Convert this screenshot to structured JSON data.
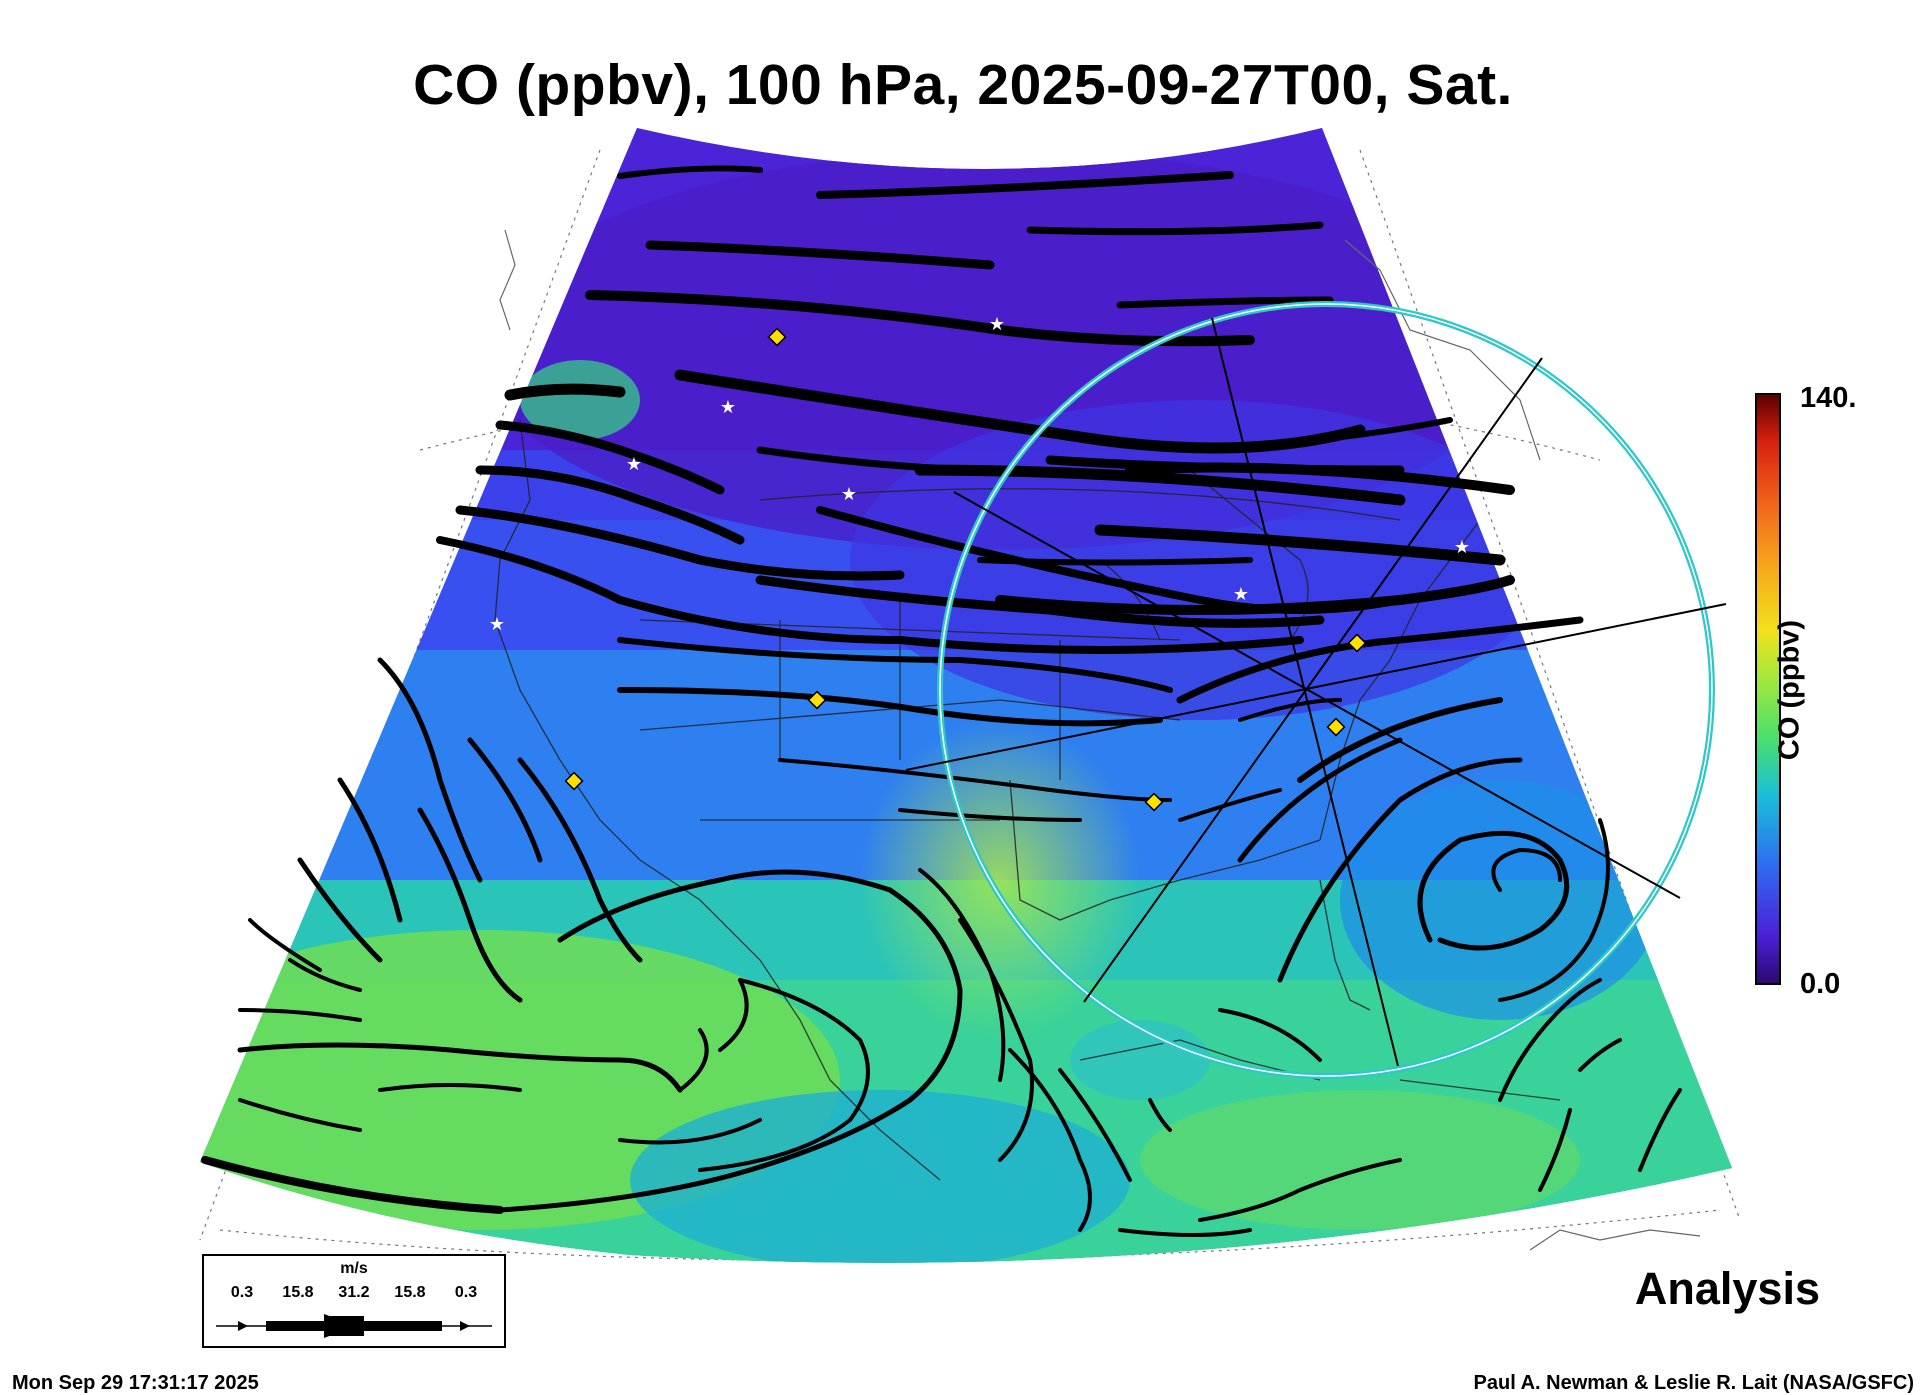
{
  "title": "CO (ppbv), 100 hPa, 2025-09-27T00, Sat.",
  "colorbar": {
    "max_label": "140.",
    "min_label": "0.0",
    "axis_label": "CO (ppbv)",
    "colors": [
      "#2a0a6e",
      "#4b1fd6",
      "#3a3cf0",
      "#2f6cf2",
      "#2196f0",
      "#19bfd6",
      "#1cd6a8",
      "#4be06a",
      "#a6e83a",
      "#f2e01c",
      "#f7a01a",
      "#f0601a",
      "#d82010",
      "#9a0a0a",
      "#5a0000"
    ]
  },
  "legend": {
    "unit": "m/s",
    "ticks": [
      "0.3",
      "15.8",
      "31.2",
      "15.8",
      "0.3"
    ]
  },
  "field_colors": {
    "low": "#4b24d8",
    "mid": "#2e80f0",
    "high": "#3fd88a",
    "peak": "#9ee84a"
  },
  "markers": {
    "diamond_color": "#ffe000",
    "star_color": "#ffffff",
    "ring_color": "#2ec8c8"
  },
  "label_analysis": "Analysis",
  "footer_left": "Mon Sep 29 17:31:17 2025",
  "footer_right": "Paul A. Newman & Leslie R. Lait (NASA/GSFC)"
}
